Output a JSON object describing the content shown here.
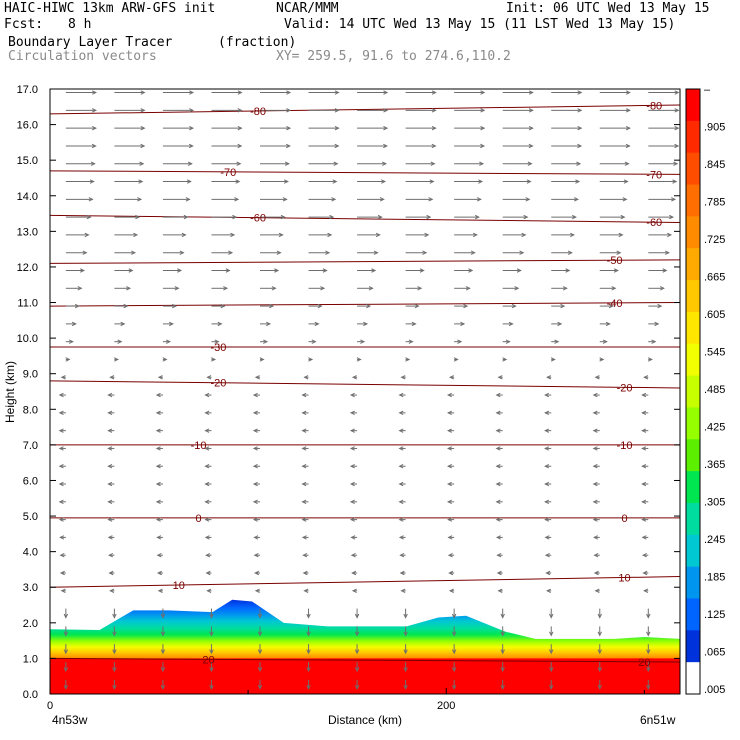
{
  "header": {
    "model": "HAIC-HIWC 13km ARW-GFS init",
    "org": "NCAR/MMM",
    "init": "Init: 06 UTC Wed 13 May 15",
    "fcst_label": "Fcst:",
    "fcst_value": "8 h",
    "valid": "Valid: 14 UTC Wed 13 May 15 (11 LST Wed 13 May 15)",
    "field1": "Boundary Layer Tracer",
    "field1_units": "(fraction)",
    "field2": "Circulation vectors",
    "xy": "XY= 259.5, 91.6 to 274.6,110.2"
  },
  "chart_data": {
    "type": "heatmap",
    "ylabel": "Height (km)",
    "xlabel": "Distance (km)",
    "ylim": [
      0,
      17
    ],
    "xlim": [
      0,
      318
    ],
    "y_ticks": [
      "0.0",
      "1.0",
      "2.0",
      "3.0",
      "4.0",
      "5.0",
      "6.0",
      "7.0",
      "8.0",
      "9.0",
      "10.0",
      "11.0",
      "12.0",
      "13.0",
      "14.0",
      "15.0",
      "16.0",
      "17.0"
    ],
    "x_ticks": [
      {
        "value": 0,
        "label": "0"
      },
      {
        "value": 200,
        "label": "200"
      }
    ],
    "x_end_labels": {
      "left": "4n53w",
      "right": "6n51w"
    },
    "colorbar_labels": [
      "–",
      ".905",
      ".845",
      ".785",
      ".725",
      ".665",
      ".605",
      ".545",
      ".485",
      ".425",
      ".365",
      ".305",
      ".245",
      ".185",
      ".125",
      ".065",
      ".005"
    ],
    "colorbar_colors": [
      "#ff0000",
      "#ff2a00",
      "#ff4d00",
      "#ff6e00",
      "#ff8c00",
      "#ffaa00",
      "#ffc800",
      "#ffe600",
      "#f2ff00",
      "#c8ff00",
      "#96ff00",
      "#5cf000",
      "#00e650",
      "#00dca0",
      "#00c8d2",
      "#0096f0",
      "#0064ff",
      "#0032dc",
      "#ffffff"
    ],
    "temperature_contours": [
      {
        "label": "-80",
        "y_left": 16.3,
        "y_right": 16.55,
        "label_x": [
          105,
          305
        ]
      },
      {
        "label": "-70",
        "y_left": 14.7,
        "y_right": 14.6,
        "label_x": [
          90,
          305
        ]
      },
      {
        "label": "-60",
        "y_left": 13.45,
        "y_right": 13.25,
        "label_x": [
          105,
          305
        ]
      },
      {
        "label": "-50",
        "y_left": 12.1,
        "y_right": 12.2,
        "label_x": [
          285
        ]
      },
      {
        "label": "-40",
        "y_left": 10.9,
        "y_right": 11.0,
        "label_x": [
          285
        ]
      },
      {
        "label": "-30",
        "y_left": 9.75,
        "y_right": 9.75,
        "label_x": [
          85
        ]
      },
      {
        "label": "-20",
        "y_left": 8.8,
        "y_right": 8.6,
        "label_x": [
          85,
          290
        ]
      },
      {
        "label": "-10",
        "y_left": 7.0,
        "y_right": 7.0,
        "label_x": [
          75,
          290
        ]
      },
      {
        "label": "0",
        "y_left": 4.95,
        "y_right": 4.95,
        "label_x": [
          75,
          290
        ]
      },
      {
        "label": "10",
        "y_left": 3.0,
        "y_right": 3.3,
        "label_x": [
          65,
          290
        ]
      },
      {
        "label": "20",
        "y_left": 1.0,
        "y_right": 0.9,
        "label_x": [
          80,
          300
        ]
      }
    ],
    "tracer_top_km": [
      [
        0,
        1.82
      ],
      [
        25,
        1.8
      ],
      [
        42,
        2.35
      ],
      [
        60,
        2.35
      ],
      [
        82,
        2.3
      ],
      [
        92,
        2.65
      ],
      [
        102,
        2.6
      ],
      [
        118,
        2.0
      ],
      [
        140,
        1.9
      ],
      [
        180,
        1.9
      ],
      [
        196,
        2.15
      ],
      [
        210,
        2.2
      ],
      [
        230,
        1.75
      ],
      [
        245,
        1.55
      ],
      [
        285,
        1.55
      ],
      [
        300,
        1.6
      ],
      [
        318,
        1.55
      ]
    ],
    "wind_profile": [
      {
        "z": 16.9,
        "u": 1.0
      },
      {
        "z": 15.5,
        "u": 1.0
      },
      {
        "z": 14.0,
        "u": 0.9
      },
      {
        "z": 12.5,
        "u": 0.7
      },
      {
        "z": 11.0,
        "u": 0.45
      },
      {
        "z": 9.5,
        "u": 0.15
      },
      {
        "z": 8.5,
        "u": -0.2
      },
      {
        "z": 5.0,
        "u": -0.2
      },
      {
        "z": 3.0,
        "u": -0.15
      },
      {
        "z": 2.0,
        "u": 0.0
      },
      {
        "z": 0.2,
        "u": 0.0
      }
    ]
  }
}
